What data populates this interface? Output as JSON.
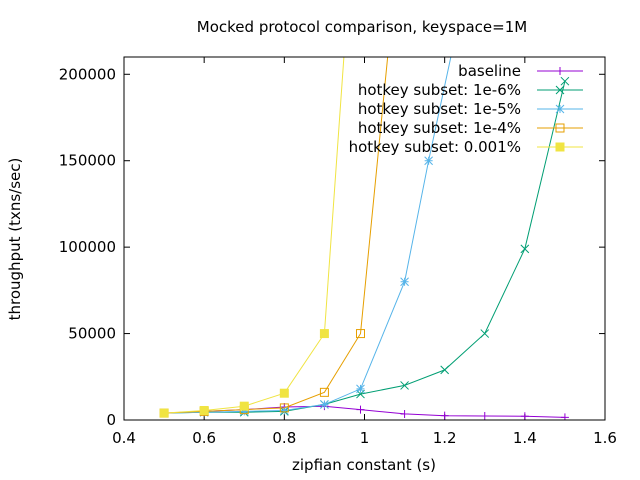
{
  "chart_data": {
    "type": "line",
    "title": "Mocked protocol comparison, keyspace=1M",
    "xlabel": "zipfian constant (s)",
    "ylabel": "throughput (txns/sec)",
    "xlim": [
      0.4,
      1.6
    ],
    "ylim": [
      0,
      210000
    ],
    "x_ticks": [
      0.4,
      0.6,
      0.8,
      1.0,
      1.2,
      1.4,
      1.6
    ],
    "x_tick_labels": [
      "0.4",
      "0.6",
      "0.8",
      "1",
      "1.2",
      "1.4",
      "1.6"
    ],
    "y_ticks": [
      0,
      50000,
      100000,
      150000,
      200000
    ],
    "y_tick_labels": [
      "0",
      "50000",
      "100000",
      "150000",
      "200000"
    ],
    "grid": false,
    "legend_position": "top-right",
    "series": [
      {
        "name": "baseline",
        "color": "#9400d3",
        "marker": "plus",
        "x": [
          0.5,
          0.6,
          0.7,
          0.8,
          0.9,
          0.99,
          1.1,
          1.2,
          1.3,
          1.4,
          1.5
        ],
        "y": [
          4000,
          5000,
          6000,
          7500,
          8000,
          6000,
          3500,
          2500,
          2300,
          2200,
          1500
        ]
      },
      {
        "name": "hotkey subset: 1e-6%",
        "color": "#009e73",
        "marker": "x",
        "x": [
          0.5,
          0.6,
          0.7,
          0.8,
          0.9,
          0.99,
          1.1,
          1.2,
          1.3,
          1.4,
          1.5
        ],
        "y": [
          4000,
          4500,
          4500,
          5000,
          9000,
          15000,
          20000,
          29000,
          50000,
          99000,
          196000
        ]
      },
      {
        "name": "hotkey subset: 1e-5%",
        "color": "#56b4e9",
        "marker": "star",
        "x": [
          0.5,
          0.6,
          0.7,
          0.8,
          0.9,
          0.99,
          1.1,
          1.16,
          1.22
        ],
        "y": [
          4000,
          4500,
          5000,
          5500,
          9000,
          18000,
          80000,
          150000,
          215000
        ]
      },
      {
        "name": "hotkey subset: 1e-4%",
        "color": "#e69f00",
        "marker": "open-square",
        "x": [
          0.5,
          0.6,
          0.7,
          0.8,
          0.9,
          0.99,
          1.06
        ],
        "y": [
          4000,
          5000,
          6000,
          7000,
          16000,
          50000,
          215000
        ]
      },
      {
        "name": "hotkey subset: 0.001%",
        "color": "#f0e442",
        "marker": "filled-square",
        "x": [
          0.5,
          0.6,
          0.7,
          0.8,
          0.9,
          0.95
        ],
        "y": [
          4000,
          5500,
          8000,
          15500,
          50000,
          215000
        ]
      }
    ]
  }
}
